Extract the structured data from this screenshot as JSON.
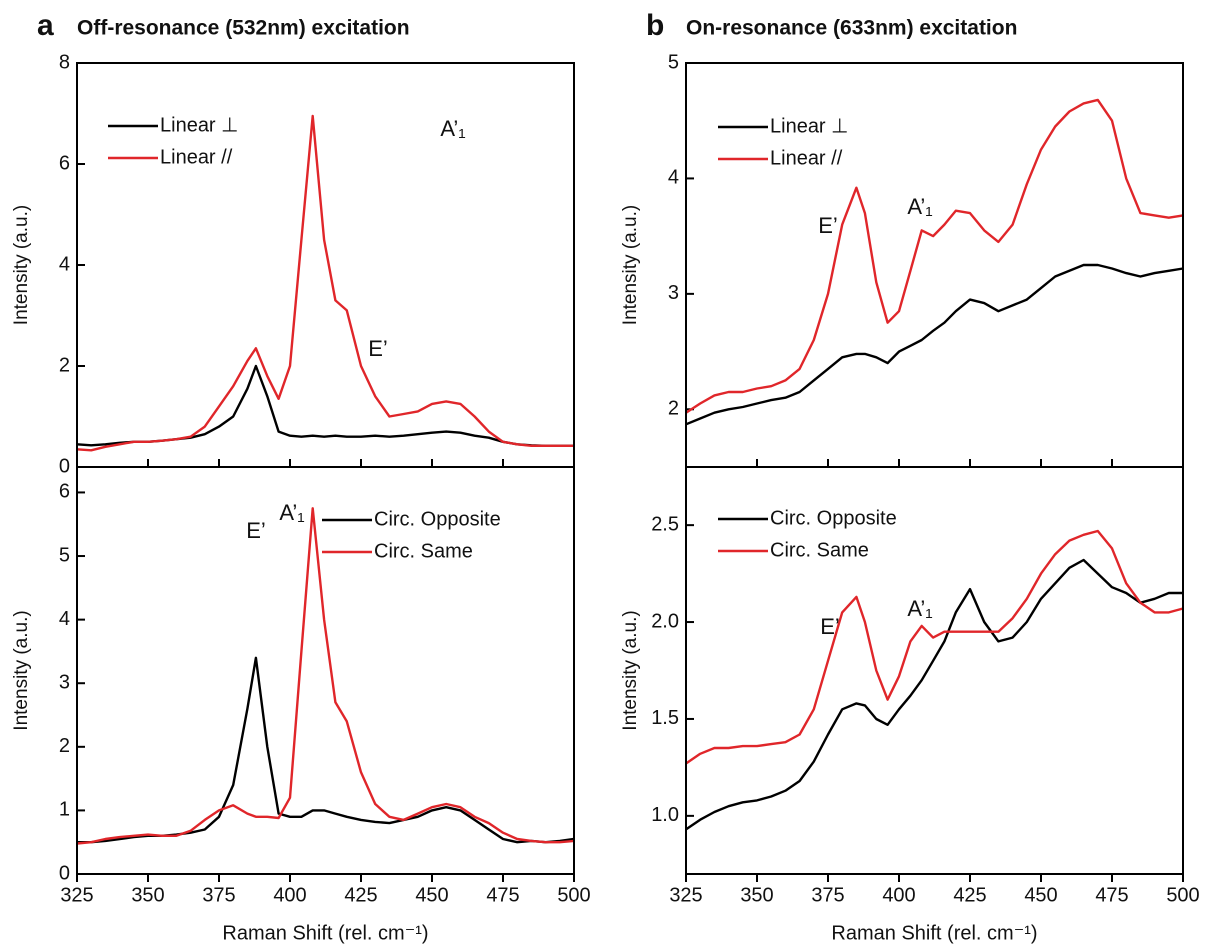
{
  "chart_data": [
    {
      "type": "line",
      "panel": "a",
      "title": "Off-resonance (532nm) excitation",
      "ylabel": "Intensity (a.u.)",
      "x": [
        325,
        330,
        335,
        340,
        345,
        350,
        355,
        360,
        365,
        370,
        375,
        380,
        385,
        388,
        392,
        396,
        400,
        404,
        408,
        412,
        416,
        420,
        425,
        430,
        435,
        440,
        445,
        450,
        455,
        460,
        465,
        470,
        475,
        480,
        485,
        490,
        495,
        500
      ],
      "xlim": [
        325,
        500
      ],
      "ylim": [
        0,
        8
      ],
      "yticks": [
        0,
        2,
        4,
        6,
        8
      ],
      "legend": "upper left",
      "annotations": [
        "E’",
        "A’₁"
      ],
      "series": [
        {
          "name": "Linear ⊥",
          "color": "#000000",
          "values": [
            0.45,
            0.43,
            0.45,
            0.48,
            0.5,
            0.5,
            0.52,
            0.55,
            0.58,
            0.65,
            0.8,
            1.0,
            1.55,
            2.0,
            1.4,
            0.7,
            0.62,
            0.6,
            0.62,
            0.6,
            0.62,
            0.6,
            0.6,
            0.62,
            0.6,
            0.62,
            0.65,
            0.68,
            0.7,
            0.68,
            0.62,
            0.58,
            0.5,
            0.45,
            0.43,
            0.42,
            0.42,
            0.42
          ]
        },
        {
          "name": "Linear //",
          "color": "#e0262a",
          "values": [
            0.35,
            0.33,
            0.4,
            0.45,
            0.5,
            0.5,
            0.52,
            0.55,
            0.6,
            0.8,
            1.2,
            1.6,
            2.1,
            2.35,
            1.8,
            1.35,
            2.0,
            4.5,
            6.95,
            4.5,
            3.3,
            3.1,
            2.0,
            1.4,
            1.0,
            1.05,
            1.1,
            1.25,
            1.3,
            1.25,
            1.0,
            0.7,
            0.5,
            0.45,
            0.42,
            0.42,
            0.42,
            0.42
          ]
        }
      ]
    },
    {
      "type": "line",
      "ylabel": "Intensity (a.u.)",
      "xlabel": "Raman Shift (rel. cm⁻¹)",
      "x": [
        325,
        330,
        335,
        340,
        345,
        350,
        355,
        360,
        365,
        370,
        375,
        380,
        385,
        388,
        392,
        396,
        400,
        404,
        408,
        412,
        416,
        420,
        425,
        430,
        435,
        440,
        445,
        450,
        455,
        460,
        465,
        470,
        475,
        480,
        485,
        490,
        495,
        500
      ],
      "xlim": [
        325,
        500
      ],
      "xticks": [
        325,
        350,
        375,
        400,
        425,
        450,
        475,
        500
      ],
      "ylim": [
        0,
        6.4
      ],
      "yticks": [
        0,
        1,
        2,
        3,
        4,
        5,
        6
      ],
      "legend": "upper right",
      "annotations": [
        "E’",
        "A’₁"
      ],
      "series": [
        {
          "name": "Circ. Opposite",
          "color": "#000000",
          "values": [
            0.5,
            0.5,
            0.52,
            0.55,
            0.58,
            0.6,
            0.6,
            0.62,
            0.65,
            0.7,
            0.9,
            1.4,
            2.6,
            3.4,
            2.0,
            0.95,
            0.9,
            0.9,
            1.0,
            1.0,
            0.95,
            0.9,
            0.85,
            0.82,
            0.8,
            0.85,
            0.9,
            1.0,
            1.05,
            1.0,
            0.85,
            0.7,
            0.55,
            0.5,
            0.52,
            0.5,
            0.52,
            0.55
          ]
        },
        {
          "name": "Circ. Same",
          "color": "#e0262a",
          "values": [
            0.48,
            0.5,
            0.55,
            0.58,
            0.6,
            0.62,
            0.6,
            0.6,
            0.68,
            0.85,
            1.0,
            1.08,
            0.95,
            0.9,
            0.9,
            0.88,
            1.2,
            3.5,
            5.75,
            4.0,
            2.7,
            2.4,
            1.6,
            1.1,
            0.9,
            0.85,
            0.95,
            1.05,
            1.1,
            1.05,
            0.9,
            0.8,
            0.65,
            0.55,
            0.52,
            0.5,
            0.5,
            0.52
          ]
        }
      ]
    },
    {
      "type": "line",
      "panel": "b",
      "title": "On-resonance (633nm) excitation",
      "ylabel": "Intensity (a.u.)",
      "x": [
        325,
        330,
        335,
        340,
        345,
        350,
        355,
        360,
        365,
        370,
        375,
        380,
        385,
        388,
        392,
        396,
        400,
        404,
        408,
        412,
        416,
        420,
        425,
        430,
        435,
        440,
        445,
        450,
        455,
        460,
        465,
        470,
        475,
        480,
        485,
        490,
        495,
        500
      ],
      "xlim": [
        325,
        500
      ],
      "ylim": [
        1.5,
        5
      ],
      "yticks": [
        2,
        3,
        4,
        5
      ],
      "legend": "upper left",
      "annotations": [
        "E’",
        "A’₁"
      ],
      "series": [
        {
          "name": "Linear ⊥",
          "color": "#000000",
          "values": [
            1.87,
            1.92,
            1.97,
            2.0,
            2.02,
            2.05,
            2.08,
            2.1,
            2.15,
            2.25,
            2.35,
            2.45,
            2.48,
            2.48,
            2.45,
            2.4,
            2.5,
            2.55,
            2.6,
            2.68,
            2.75,
            2.85,
            2.95,
            2.92,
            2.85,
            2.9,
            2.95,
            3.05,
            3.15,
            3.2,
            3.25,
            3.25,
            3.22,
            3.18,
            3.15,
            3.18,
            3.2,
            3.22
          ]
        },
        {
          "name": "Linear //",
          "color": "#e0262a",
          "values": [
            1.97,
            2.05,
            2.12,
            2.15,
            2.15,
            2.18,
            2.2,
            2.25,
            2.35,
            2.6,
            3.0,
            3.6,
            3.92,
            3.7,
            3.1,
            2.75,
            2.85,
            3.2,
            3.55,
            3.5,
            3.6,
            3.72,
            3.7,
            3.55,
            3.45,
            3.6,
            3.95,
            4.25,
            4.45,
            4.58,
            4.65,
            4.68,
            4.5,
            4.0,
            3.7,
            3.68,
            3.66,
            3.68
          ]
        }
      ]
    },
    {
      "type": "line",
      "ylabel": "Intensity (a.u.)",
      "xlabel": "Raman Shift (rel. cm⁻¹)",
      "x": [
        325,
        330,
        335,
        340,
        345,
        350,
        355,
        360,
        365,
        370,
        375,
        380,
        385,
        388,
        392,
        396,
        400,
        404,
        408,
        412,
        416,
        420,
        425,
        430,
        435,
        440,
        445,
        450,
        455,
        460,
        465,
        470,
        475,
        480,
        485,
        490,
        495,
        500
      ],
      "xlim": [
        325,
        500
      ],
      "xticks": [
        325,
        350,
        375,
        400,
        425,
        450,
        475,
        500
      ],
      "ylim": [
        0.7,
        2.8
      ],
      "yticks": [
        {
          "value": 1,
          "label": "1.0"
        },
        1.5,
        {
          "value": 2,
          "label": "2.0"
        },
        2.5
      ],
      "legend": "upper left",
      "annotations": [
        "E’",
        "A’₁"
      ],
      "series": [
        {
          "name": "Circ. Opposite",
          "color": "#000000",
          "values": [
            0.93,
            0.98,
            1.02,
            1.05,
            1.07,
            1.08,
            1.1,
            1.13,
            1.18,
            1.28,
            1.42,
            1.55,
            1.58,
            1.57,
            1.5,
            1.47,
            1.55,
            1.62,
            1.7,
            1.8,
            1.9,
            2.05,
            2.17,
            2.0,
            1.9,
            1.92,
            2.0,
            2.12,
            2.2,
            2.28,
            2.32,
            2.25,
            2.18,
            2.15,
            2.1,
            2.12,
            2.15,
            2.15
          ]
        },
        {
          "name": "Circ. Same",
          "color": "#e0262a",
          "values": [
            1.27,
            1.32,
            1.35,
            1.35,
            1.36,
            1.36,
            1.37,
            1.38,
            1.42,
            1.55,
            1.8,
            2.05,
            2.13,
            2.0,
            1.75,
            1.6,
            1.72,
            1.9,
            1.98,
            1.92,
            1.95,
            1.95,
            1.95,
            1.95,
            1.95,
            2.02,
            2.12,
            2.25,
            2.35,
            2.42,
            2.45,
            2.47,
            2.38,
            2.2,
            2.1,
            2.05,
            2.05,
            2.07
          ]
        }
      ]
    }
  ]
}
